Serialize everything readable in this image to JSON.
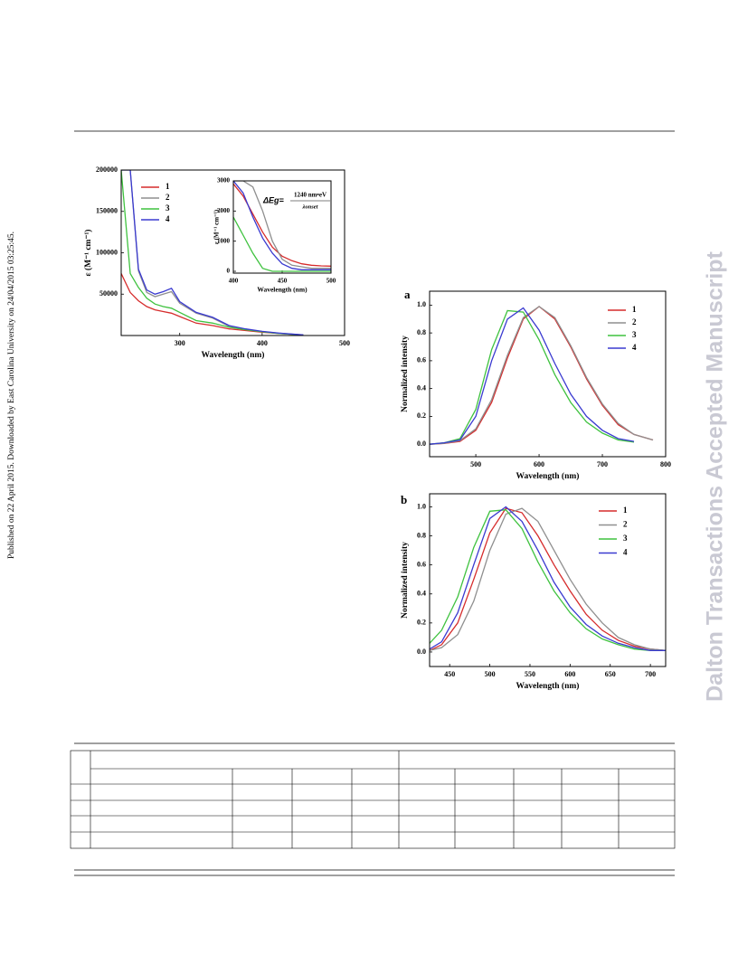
{
  "margin_note": "Published on 22 April 2015. Downloaded by East Carolina University on 24/04/2015 03:25:45.",
  "watermark": "Dalton Transactions Accepted Manuscript",
  "chart_data": [
    {
      "type": "line",
      "xlabel": "Wavelength (nm)",
      "ylabel": "ε (M⁻¹ cm⁻¹)",
      "xlim": [
        229,
        500
      ],
      "xticks": [
        300,
        400,
        500
      ],
      "ylim": [
        0,
        200000
      ],
      "yticks": [
        50000,
        100000,
        150000,
        200000
      ],
      "x": [
        229,
        240,
        250,
        260,
        270,
        280,
        290,
        300,
        320,
        340,
        360,
        380,
        400,
        420,
        450
      ],
      "series": [
        {
          "name": "1",
          "color": "#d62c2c",
          "values": [
            75000,
            52000,
            42000,
            35000,
            31000,
            29000,
            27000,
            23000,
            15000,
            12000,
            8000,
            6000,
            4000,
            2500,
            500
          ]
        },
        {
          "name": "2",
          "color": "#8f8f8f",
          "values": [
            200000,
            200000,
            78000,
            52000,
            47000,
            50000,
            53000,
            39000,
            27000,
            21000,
            11000,
            7500,
            4800,
            2800,
            700
          ]
        },
        {
          "name": "3",
          "color": "#3fc23f",
          "values": [
            200000,
            75000,
            58000,
            45000,
            38000,
            35000,
            33000,
            28000,
            18000,
            15000,
            10000,
            7000,
            4500,
            2500,
            500
          ]
        },
        {
          "name": "4",
          "color": "#3a3ad0",
          "values": [
            200000,
            200000,
            80000,
            55000,
            50000,
            53000,
            57000,
            41000,
            28000,
            22000,
            12000,
            8000,
            5000,
            3000,
            800
          ]
        }
      ]
    },
    {
      "type": "line",
      "xlabel": "Wavelength (nm)",
      "ylabel": "ε (M⁻¹ cm⁻¹)",
      "formula_lhs": "ΔEg=",
      "formula_numerator": "1240 nm•eV",
      "formula_denominator": "λonset",
      "xlim": [
        400,
        500
      ],
      "xticks": [
        400,
        450,
        500
      ],
      "ylim": [
        -60,
        3000
      ],
      "yticks": [
        0,
        1000,
        2000,
        3000
      ],
      "x": [
        400,
        410,
        420,
        430,
        440,
        450,
        460,
        470,
        480,
        490,
        500
      ],
      "series": [
        {
          "color": "#d62c2c",
          "values": [
            2900,
            2500,
            1900,
            1300,
            800,
            500,
            350,
            250,
            200,
            180,
            170
          ]
        },
        {
          "color": "#8f8f8f",
          "values": [
            3000,
            3000,
            2800,
            2000,
            1000,
            400,
            200,
            150,
            100,
            100,
            100
          ]
        },
        {
          "color": "#3fc23f",
          "values": [
            1800,
            1200,
            600,
            100,
            0,
            0,
            0,
            0,
            0,
            0,
            0
          ]
        },
        {
          "color": "#3a3ad0",
          "values": [
            3000,
            2600,
            1800,
            1100,
            600,
            250,
            100,
            50,
            50,
            50,
            50
          ]
        }
      ]
    },
    {
      "type": "line",
      "panel_label": "a",
      "xlabel": "Wavelength (nm)",
      "ylabel": "Normalized intensity",
      "xlim": [
        427,
        800
      ],
      "xticks": [
        500,
        600,
        700,
        800
      ],
      "ylim": [
        -0.09,
        1.1
      ],
      "yticks": [
        {
          "value": 0,
          "label": "0.0"
        },
        {
          "value": 0.2,
          "label": "0.2"
        },
        {
          "value": 0.4,
          "label": "0.4"
        },
        {
          "value": 0.6,
          "label": "0.6"
        },
        {
          "value": 0.8,
          "label": "0.8"
        },
        {
          "value": 1,
          "label": "1.0"
        }
      ],
      "x": [
        427,
        450,
        475,
        500,
        525,
        550,
        575,
        600,
        625,
        650,
        675,
        700,
        725,
        750,
        780
      ],
      "series": [
        {
          "name": "1",
          "color": "#d62c2c",
          "values": [
            0,
            0.005,
            0.02,
            0.1,
            0.3,
            0.62,
            0.9,
            0.99,
            0.9,
            0.7,
            0.47,
            0.28,
            0.14,
            0.07,
            0.03
          ]
        },
        {
          "name": "2",
          "color": "#8f8f8f",
          "values": [
            0,
            0.006,
            0.025,
            0.11,
            0.32,
            0.64,
            0.91,
            0.99,
            0.91,
            0.71,
            0.48,
            0.29,
            0.15,
            0.07,
            0.03
          ]
        },
        {
          "name": "3",
          "color": "#3fc23f",
          "values": [
            0,
            0.01,
            0.04,
            0.25,
            0.68,
            0.96,
            0.95,
            0.75,
            0.5,
            0.3,
            0.16,
            0.08,
            0.03,
            0.015,
            null
          ]
        },
        {
          "name": "4",
          "color": "#3a3ad0",
          "values": [
            0,
            0.01,
            0.03,
            0.2,
            0.6,
            0.9,
            0.98,
            0.82,
            0.58,
            0.36,
            0.2,
            0.1,
            0.04,
            0.02,
            null
          ]
        }
      ]
    },
    {
      "type": "line",
      "panel_label": "b",
      "xlabel": "Wavelength (nm)",
      "ylabel": "Normalized intensity",
      "xlim": [
        425,
        719
      ],
      "xticks": [
        450,
        500,
        550,
        600,
        650,
        700
      ],
      "ylim": [
        -0.1,
        1.09
      ],
      "yticks": [
        {
          "value": 0,
          "label": "0.0"
        },
        {
          "value": 0.2,
          "label": "0.2"
        },
        {
          "value": 0.4,
          "label": "0.4"
        },
        {
          "value": 0.6,
          "label": "0.6"
        },
        {
          "value": 0.8,
          "label": "0.8"
        },
        {
          "value": 1,
          "label": "1.0"
        }
      ],
      "x": [
        425,
        440,
        460,
        480,
        500,
        520,
        540,
        560,
        580,
        600,
        620,
        640,
        660,
        680,
        700,
        719
      ],
      "series": [
        {
          "name": "1",
          "color": "#d62c2c",
          "values": [
            0.01,
            0.05,
            0.2,
            0.5,
            0.82,
            0.99,
            0.96,
            0.8,
            0.6,
            0.42,
            0.26,
            0.15,
            0.08,
            0.04,
            0.02,
            0.01
          ]
        },
        {
          "name": "2",
          "color": "#8f8f8f",
          "values": [
            0.01,
            0.03,
            0.12,
            0.35,
            0.7,
            0.95,
            0.99,
            0.9,
            0.7,
            0.5,
            0.33,
            0.2,
            0.1,
            0.05,
            0.02,
            0.01
          ]
        },
        {
          "name": "3",
          "color": "#3fc23f",
          "values": [
            0.06,
            0.15,
            0.38,
            0.72,
            0.97,
            0.98,
            0.85,
            0.62,
            0.42,
            0.27,
            0.16,
            0.09,
            0.05,
            0.02,
            0.01,
            0.01
          ]
        },
        {
          "name": "4",
          "color": "#3a3ad0",
          "values": [
            0.02,
            0.07,
            0.27,
            0.6,
            0.92,
            1,
            0.9,
            0.7,
            0.48,
            0.31,
            0.19,
            0.11,
            0.06,
            0.03,
            0.01,
            0.01
          ]
        }
      ]
    }
  ]
}
